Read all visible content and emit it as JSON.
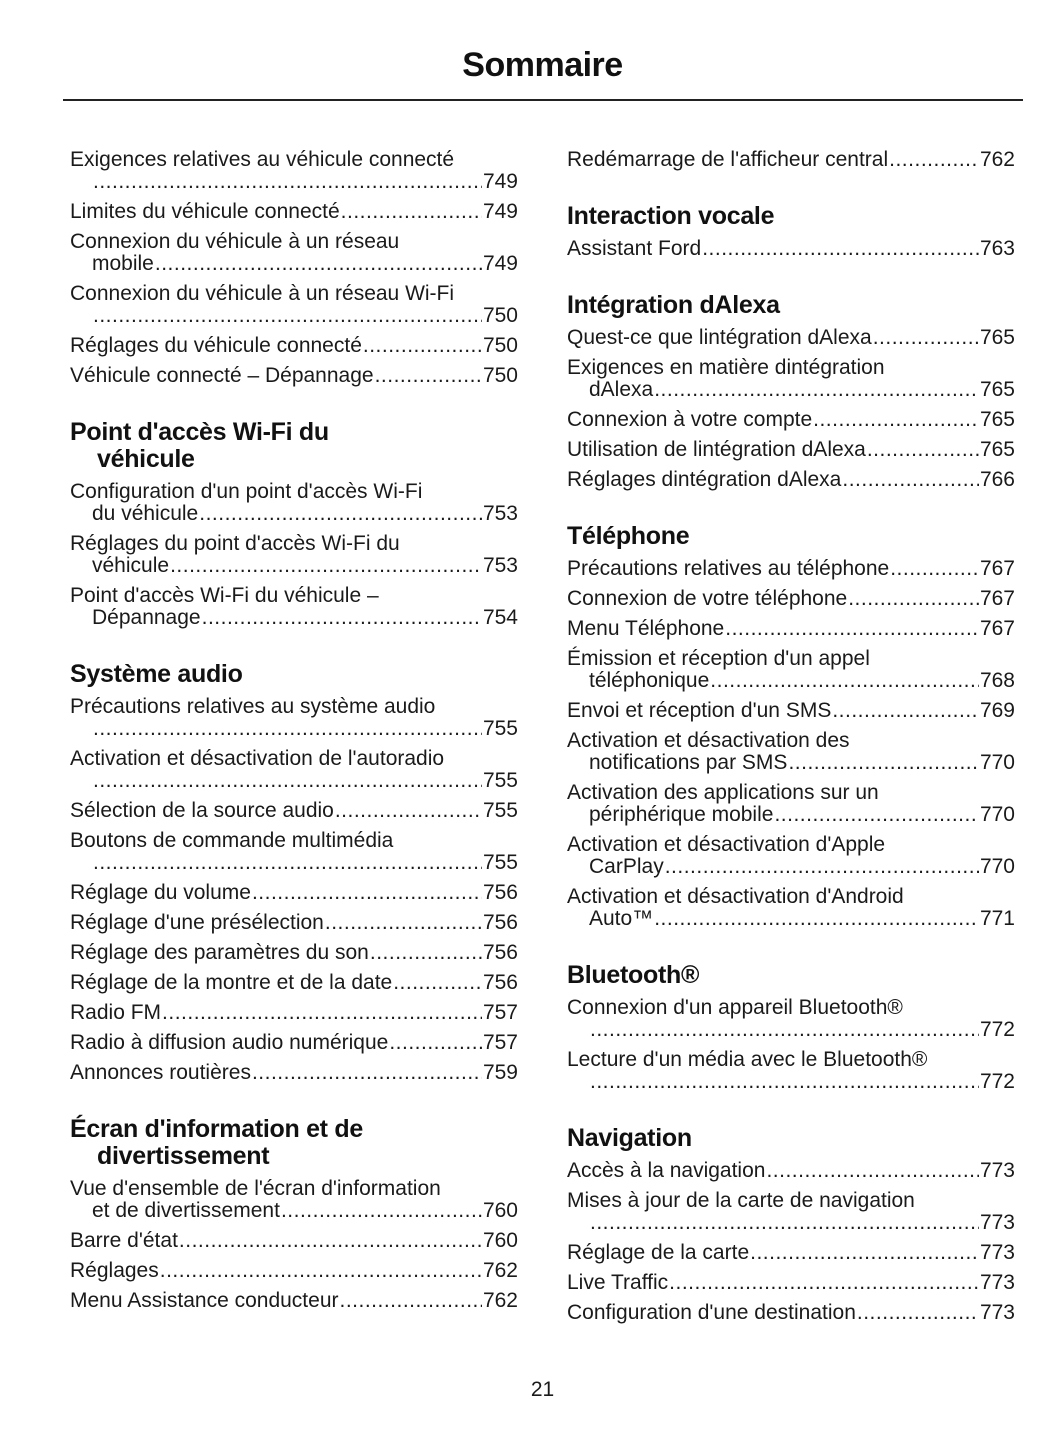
{
  "title": "Sommaire",
  "page_number": "21",
  "columns": [
    {
      "sections": [
        {
          "heading": [],
          "entries": [
            {
              "l1": "Exigences relatives au véhicule connecté",
              "last": "",
              "page": "749"
            },
            {
              "l1": "",
              "last": "Limites du véhicule connecté",
              "page": "749"
            },
            {
              "l1": "Connexion du véhicule à un réseau",
              "last": "mobile",
              "page": "749"
            },
            {
              "l1": "Connexion du véhicule à un réseau Wi-Fi",
              "last": "",
              "page": "750"
            },
            {
              "l1": "",
              "last": "Réglages du véhicule connecté",
              "page": "750"
            },
            {
              "l1": "",
              "last": "Véhicule connecté – Dépannage",
              "page": "750"
            }
          ]
        },
        {
          "heading": [
            "Point d'accès Wi-Fi du",
            "véhicule"
          ],
          "entries": [
            {
              "l1": "Configuration d'un point d'accès Wi-Fi",
              "last": "du véhicule",
              "page": "753"
            },
            {
              "l1": "Réglages du point d'accès Wi-Fi du",
              "last": "véhicule",
              "page": "753"
            },
            {
              "l1": "Point d'accès Wi-Fi du véhicule –",
              "last": "Dépannage",
              "page": "754"
            }
          ]
        },
        {
          "heading": [
            "Système audio"
          ],
          "entries": [
            {
              "l1": "Précautions relatives au système audio",
              "last": "",
              "page": "755"
            },
            {
              "l1": "Activation et désactivation de l'autoradio",
              "last": "",
              "page": "755"
            },
            {
              "l1": "",
              "last": "Sélection de la source audio",
              "page": "755"
            },
            {
              "l1": "Boutons de commande multimédia",
              "last": "",
              "page": "755"
            },
            {
              "l1": "",
              "last": "Réglage du volume",
              "page": "756"
            },
            {
              "l1": "",
              "last": "Réglage d'une présélection",
              "page": "756"
            },
            {
              "l1": "",
              "last": "Réglage des paramètres du son",
              "page": "756"
            },
            {
              "l1": "",
              "last": "Réglage de la montre et de la date",
              "page": "756"
            },
            {
              "l1": "",
              "last": "Radio FM",
              "page": "757"
            },
            {
              "l1": "",
              "last": "Radio à diffusion audio numérique",
              "page": "757"
            },
            {
              "l1": "",
              "last": "Annonces routières",
              "page": "759"
            }
          ]
        },
        {
          "heading": [
            "Écran d'information et de",
            "divertissement"
          ],
          "entries": [
            {
              "l1": "Vue d'ensemble de l'écran d'information",
              "last": "et de divertissement",
              "page": "760"
            },
            {
              "l1": "",
              "last": "Barre d'état",
              "page": "760"
            },
            {
              "l1": "",
              "last": "Réglages",
              "page": "762"
            },
            {
              "l1": "",
              "last": "Menu Assistance conducteur",
              "page": "762"
            }
          ]
        }
      ]
    },
    {
      "sections": [
        {
          "heading": [],
          "entries": [
            {
              "l1": "",
              "last": "Redémarrage de l'afficheur central",
              "page": "762"
            }
          ]
        },
        {
          "heading": [
            "Interaction vocale"
          ],
          "entries": [
            {
              "l1": "",
              "last": "Assistant Ford",
              "page": "763"
            }
          ]
        },
        {
          "heading": [
            "Intégration dAlexa"
          ],
          "entries": [
            {
              "l1": "",
              "last": "Quest-ce que lintégration dAlexa",
              "page": "765"
            },
            {
              "l1": "Exigences en matière dintégration",
              "last": "dAlexa",
              "page": "765"
            },
            {
              "l1": "",
              "last": "Connexion à votre compte",
              "page": "765"
            },
            {
              "l1": "",
              "last": "Utilisation de lintégration dAlexa",
              "page": "765"
            },
            {
              "l1": "",
              "last": "Réglages dintégration dAlexa",
              "page": "766"
            }
          ]
        },
        {
          "heading": [
            "Téléphone"
          ],
          "entries": [
            {
              "l1": "",
              "last": "Précautions relatives au téléphone",
              "page": "767"
            },
            {
              "l1": "",
              "last": "Connexion de votre téléphone",
              "page": "767"
            },
            {
              "l1": "",
              "last": "Menu Téléphone",
              "page": "767"
            },
            {
              "l1": "Émission et réception d'un appel",
              "last": "téléphonique",
              "page": "768"
            },
            {
              "l1": "",
              "last": "Envoi et réception d'un SMS",
              "page": "769"
            },
            {
              "l1": "Activation et désactivation des",
              "last": "notifications par SMS",
              "page": "770"
            },
            {
              "l1": "Activation des applications sur un",
              "last": "périphérique mobile",
              "page": "770"
            },
            {
              "l1": "Activation et désactivation d'Apple",
              "last": "CarPlay",
              "page": "770"
            },
            {
              "l1": "Activation et désactivation d'Android",
              "last": "Auto™",
              "page": "771"
            }
          ]
        },
        {
          "heading": [
            "Bluetooth®"
          ],
          "entries": [
            {
              "l1": "Connexion d'un appareil Bluetooth®",
              "last": "",
              "page": "772"
            },
            {
              "l1": "Lecture d'un média avec le Bluetooth®",
              "last": "",
              "page": "772"
            }
          ]
        },
        {
          "heading": [
            "Navigation"
          ],
          "entries": [
            {
              "l1": "",
              "last": "Accès à la navigation",
              "page": "773"
            },
            {
              "l1": "Mises à jour de la carte de navigation",
              "last": "",
              "page": "773"
            },
            {
              "l1": "",
              "last": "Réglage de la carte",
              "page": "773"
            },
            {
              "l1": "",
              "last": "Live Traffic",
              "page": "773"
            },
            {
              "l1": "",
              "last": "Configuration d'une destination",
              "page": "773"
            }
          ]
        }
      ]
    }
  ]
}
